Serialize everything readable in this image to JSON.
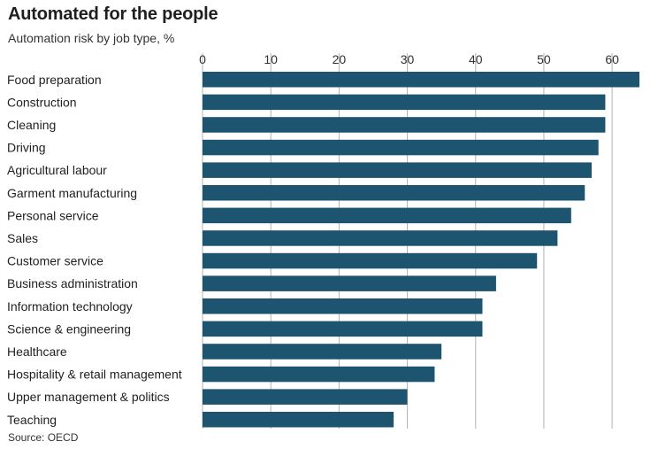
{
  "title": "Automated for the people",
  "subtitle": "Automation risk by job type, %",
  "source": "Source: OECD",
  "chart_data": {
    "type": "bar",
    "orientation": "horizontal",
    "categories": [
      "Food preparation",
      "Construction",
      "Cleaning",
      "Driving",
      "Agricultural labour",
      "Garment manufacturing",
      "Personal service",
      "Sales",
      "Customer service",
      "Business administration",
      "Information technology",
      "Science & engineering",
      "Healthcare",
      "Hospitality & retail management",
      "Upper management & politics",
      "Teaching"
    ],
    "values": [
      64,
      59,
      59,
      58,
      57,
      56,
      54,
      52,
      49,
      43,
      41,
      41,
      35,
      34,
      30,
      28
    ],
    "xlim": [
      0,
      64
    ],
    "xticks": [
      0,
      10,
      20,
      30,
      40,
      50,
      60
    ],
    "xaxis_position": "top",
    "grid": true,
    "bar_color": "#1d5470",
    "grid_color": "#b3b3b3"
  }
}
